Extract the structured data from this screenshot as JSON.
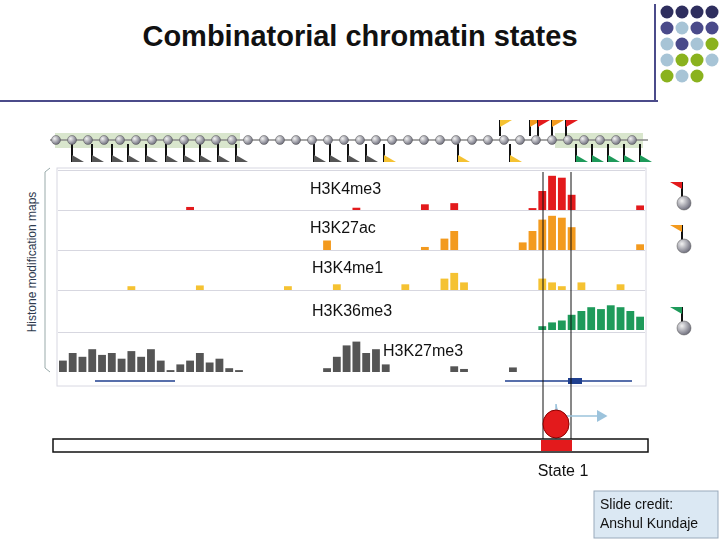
{
  "title": "Combinatorial chromatin states",
  "side_label": "Histone modification maps",
  "chart_data": [
    {
      "type": "bar",
      "title": "H3K4me3",
      "color": "#e31a1c",
      "ylim": [
        0,
        10
      ],
      "tick_labels": false,
      "grid": false,
      "values": [
        0,
        0,
        0,
        0,
        0,
        0,
        0,
        0,
        0,
        0,
        0,
        0,
        0,
        0.8,
        0,
        0,
        0,
        0,
        0,
        0,
        0,
        0,
        0,
        0,
        0,
        0,
        0,
        0,
        0,
        0,
        0.6,
        0,
        0,
        0,
        0,
        0,
        0,
        1.5,
        0,
        0,
        1.8,
        0,
        0,
        0,
        0,
        0,
        0,
        0,
        0.5,
        5,
        9,
        8.5,
        4,
        0,
        0,
        0,
        0,
        0,
        0,
        1.2
      ]
    },
    {
      "type": "bar",
      "title": "H3K27ac",
      "color": "#f39a1e",
      "ylim": [
        0,
        10
      ],
      "tick_labels": false,
      "grid": false,
      "values": [
        0,
        0,
        0,
        0,
        0,
        0,
        0,
        0,
        0,
        0,
        0,
        0,
        0,
        0,
        0,
        0,
        0,
        0,
        0,
        0,
        0,
        0,
        0,
        0,
        0,
        0,
        0,
        2.5,
        0,
        0,
        0,
        0,
        0,
        0,
        0,
        0,
        0,
        0.8,
        0,
        3,
        5,
        0,
        0,
        0,
        0,
        0,
        0,
        2,
        5,
        8,
        9,
        8.5,
        6,
        0,
        0,
        0,
        0,
        0,
        0,
        1.5
      ]
    },
    {
      "type": "bar",
      "title": "H3K4me1",
      "color": "#f5c232",
      "ylim": [
        0,
        10
      ],
      "tick_labels": false,
      "grid": false,
      "values": [
        0,
        0,
        0,
        0,
        0,
        0,
        0,
        1,
        0,
        0,
        0,
        0,
        0,
        0,
        1.2,
        0,
        0,
        0,
        0,
        0,
        0,
        0,
        0,
        1,
        0,
        0,
        0,
        0,
        1.5,
        0,
        0,
        0,
        0,
        0,
        0,
        1.5,
        0,
        0,
        0,
        3,
        4.5,
        2,
        0,
        0,
        0,
        0,
        0,
        0,
        0,
        3,
        2,
        1,
        0,
        2,
        0,
        0,
        0,
        1.5,
        0,
        0
      ]
    },
    {
      "type": "bar",
      "title": "H3K36me3",
      "color": "#1e9a5a",
      "ylim": [
        0,
        10
      ],
      "tick_labels": false,
      "grid": false,
      "values": [
        0,
        0,
        0,
        0,
        0,
        0,
        0,
        0,
        0,
        0,
        0,
        0,
        0,
        0,
        0,
        0,
        0,
        0,
        0,
        0,
        0,
        0,
        0,
        0,
        0,
        0,
        0,
        0,
        0,
        0,
        0,
        0,
        0,
        0,
        0,
        0,
        0,
        0,
        0,
        0,
        0,
        0,
        0,
        0,
        0,
        0,
        0,
        0,
        0,
        1,
        2,
        2.5,
        4,
        5,
        6,
        5.5,
        6.5,
        6,
        5,
        3.5
      ]
    },
    {
      "type": "bar",
      "title": "H3K27me3",
      "color": "#555555",
      "ylim": [
        0,
        10
      ],
      "tick_labels": false,
      "grid": false,
      "values": [
        3,
        5,
        4,
        6,
        4.5,
        5,
        3.5,
        5.5,
        4,
        6,
        3,
        0.5,
        2,
        3,
        5,
        2.5,
        3.5,
        1,
        0.5,
        0,
        0,
        0,
        0,
        0,
        0,
        0,
        0,
        1,
        4,
        7,
        8,
        5,
        6,
        2,
        0,
        0,
        0,
        0,
        0,
        0,
        1.5,
        0.8,
        0,
        0,
        0,
        0,
        1.2,
        0,
        0,
        0,
        0,
        0,
        0,
        0,
        0,
        0,
        0,
        0,
        0,
        0
      ]
    }
  ],
  "state_label": "State 1",
  "credit": [
    "Slide credit:",
    "Anshul Kundaje"
  ]
}
